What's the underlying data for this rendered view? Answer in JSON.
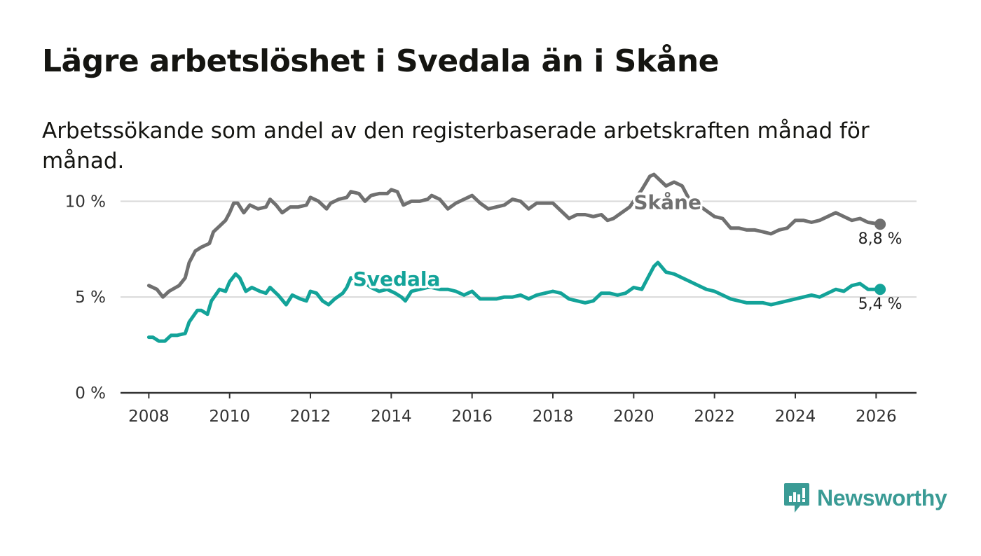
{
  "title": "Lägre arbetslöshet i Svedala än i Skåne",
  "subtitle": "Arbetssökande som andel av den registerbaserade arbetskraften månad för månad.",
  "brand": "Newsworthy",
  "colors": {
    "skane": "#707070",
    "svedala": "#13a399",
    "grid": "#d9d9d9",
    "axis": "#333333",
    "brand": "#3a9b95"
  },
  "chart_data": {
    "type": "line",
    "title": "Lägre arbetslöshet i Svedala än i Skåne",
    "xlabel": "",
    "ylabel": "",
    "xlim": [
      2007.3,
      2027.0
    ],
    "ylim": [
      0,
      11
    ],
    "x_ticks": [
      {
        "value": 2008,
        "label": "2008"
      },
      {
        "value": 2010,
        "label": "2010"
      },
      {
        "value": 2012,
        "label": "2012"
      },
      {
        "value": 2014,
        "label": "2014"
      },
      {
        "value": 2016,
        "label": "2016"
      },
      {
        "value": 2018,
        "label": "2018"
      },
      {
        "value": 2020,
        "label": "2020"
      },
      {
        "value": 2022,
        "label": "2022"
      },
      {
        "value": 2024,
        "label": "2024"
      },
      {
        "value": 2026,
        "label": "2026"
      }
    ],
    "y_ticks": [
      {
        "value": 0,
        "label": "0 %"
      },
      {
        "value": 5,
        "label": "5 %"
      },
      {
        "value": 10,
        "label": "10 %"
      }
    ],
    "series": [
      {
        "name": "Skåne",
        "color": "#707070",
        "last_label": "8,8 %",
        "x": [
          2008.0,
          2008.2,
          2008.35,
          2008.5,
          2008.75,
          2008.9,
          2009.0,
          2009.15,
          2009.3,
          2009.5,
          2009.6,
          2009.75,
          2009.9,
          2010.0,
          2010.1,
          2010.2,
          2010.35,
          2010.5,
          2010.7,
          2010.9,
          2011.0,
          2011.15,
          2011.3,
          2011.5,
          2011.7,
          2011.9,
          2012.0,
          2012.2,
          2012.4,
          2012.5,
          2012.7,
          2012.9,
          2013.0,
          2013.2,
          2013.35,
          2013.5,
          2013.7,
          2013.9,
          2014.0,
          2014.15,
          2014.3,
          2014.5,
          2014.7,
          2014.9,
          2015.0,
          2015.2,
          2015.4,
          2015.6,
          2015.8,
          2016.0,
          2016.2,
          2016.4,
          2016.6,
          2016.8,
          2017.0,
          2017.2,
          2017.4,
          2017.6,
          2017.8,
          2018.0,
          2018.2,
          2018.4,
          2018.6,
          2018.8,
          2019.0,
          2019.2,
          2019.35,
          2019.5,
          2019.7,
          2019.9,
          2020.0,
          2020.2,
          2020.4,
          2020.5,
          2020.6,
          2020.8,
          2021.0,
          2021.2,
          2021.4,
          2021.6,
          2021.8,
          2022.0,
          2022.2,
          2022.4,
          2022.6,
          2022.8,
          2023.0,
          2023.2,
          2023.4,
          2023.6,
          2023.8,
          2024.0,
          2024.2,
          2024.4,
          2024.6,
          2024.8,
          2025.0,
          2025.2,
          2025.4,
          2025.6,
          2025.8,
          2026.1
        ],
        "values": [
          5.6,
          5.4,
          5.0,
          5.3,
          5.6,
          6.0,
          6.8,
          7.4,
          7.6,
          7.8,
          8.4,
          8.7,
          9.0,
          9.4,
          9.9,
          9.9,
          9.4,
          9.8,
          9.6,
          9.7,
          10.1,
          9.8,
          9.4,
          9.7,
          9.7,
          9.8,
          10.2,
          10.0,
          9.6,
          9.9,
          10.1,
          10.2,
          10.5,
          10.4,
          10.0,
          10.3,
          10.4,
          10.4,
          10.6,
          10.5,
          9.8,
          10.0,
          10.0,
          10.1,
          10.3,
          10.1,
          9.6,
          9.9,
          10.1,
          10.3,
          9.9,
          9.6,
          9.7,
          9.8,
          10.1,
          10.0,
          9.6,
          9.9,
          9.9,
          9.9,
          9.5,
          9.1,
          9.3,
          9.3,
          9.2,
          9.3,
          9.0,
          9.1,
          9.4,
          9.7,
          10.0,
          10.6,
          11.3,
          11.4,
          11.2,
          10.8,
          11.0,
          10.8,
          10.0,
          9.8,
          9.5,
          9.2,
          9.1,
          8.6,
          8.6,
          8.5,
          8.5,
          8.4,
          8.3,
          8.5,
          8.6,
          9.0,
          9.0,
          8.9,
          9.0,
          9.2,
          9.4,
          9.2,
          9.0,
          9.1,
          8.9,
          8.8
        ]
      },
      {
        "name": "Svedala",
        "color": "#13a399",
        "last_label": "5,4 %",
        "x": [
          2008.0,
          2008.1,
          2008.25,
          2008.4,
          2008.55,
          2008.7,
          2008.9,
          2009.0,
          2009.2,
          2009.3,
          2009.45,
          2009.55,
          2009.75,
          2009.9,
          2010.0,
          2010.15,
          2010.25,
          2010.4,
          2010.55,
          2010.75,
          2010.9,
          2011.0,
          2011.2,
          2011.4,
          2011.55,
          2011.75,
          2011.9,
          2012.0,
          2012.15,
          2012.3,
          2012.45,
          2012.6,
          2012.8,
          2012.9,
          2013.0,
          2013.3,
          2013.5,
          2013.7,
          2013.9,
          2014.1,
          2014.25,
          2014.35,
          2014.5,
          2014.7,
          2014.9,
          2015.0,
          2015.2,
          2015.4,
          2015.6,
          2015.8,
          2016.0,
          2016.2,
          2016.4,
          2016.6,
          2016.8,
          2017.0,
          2017.2,
          2017.4,
          2017.6,
          2017.8,
          2018.0,
          2018.2,
          2018.4,
          2018.6,
          2018.8,
          2019.0,
          2019.2,
          2019.4,
          2019.6,
          2019.8,
          2020.0,
          2020.2,
          2020.35,
          2020.5,
          2020.6,
          2020.8,
          2021.0,
          2021.2,
          2021.4,
          2021.6,
          2021.8,
          2022.0,
          2022.2,
          2022.4,
          2022.6,
          2022.8,
          2023.0,
          2023.2,
          2023.4,
          2023.6,
          2023.8,
          2024.0,
          2024.2,
          2024.4,
          2024.6,
          2024.8,
          2025.0,
          2025.2,
          2025.4,
          2025.6,
          2025.8,
          2026.1
        ],
        "values": [
          2.9,
          2.9,
          2.7,
          2.7,
          3.0,
          3.0,
          3.1,
          3.7,
          4.3,
          4.3,
          4.1,
          4.8,
          5.4,
          5.3,
          5.8,
          6.2,
          6.0,
          5.3,
          5.5,
          5.3,
          5.2,
          5.5,
          5.1,
          4.6,
          5.1,
          4.9,
          4.8,
          5.3,
          5.2,
          4.8,
          4.6,
          4.9,
          5.2,
          5.5,
          6.0,
          5.8,
          5.5,
          5.3,
          5.4,
          5.2,
          5.0,
          4.8,
          5.3,
          5.4,
          5.5,
          5.5,
          5.4,
          5.4,
          5.3,
          5.1,
          5.3,
          4.9,
          4.9,
          4.9,
          5.0,
          5.0,
          5.1,
          4.9,
          5.1,
          5.2,
          5.3,
          5.2,
          4.9,
          4.8,
          4.7,
          4.8,
          5.2,
          5.2,
          5.1,
          5.2,
          5.5,
          5.4,
          6.0,
          6.6,
          6.8,
          6.3,
          6.2,
          6.0,
          5.8,
          5.6,
          5.4,
          5.3,
          5.1,
          4.9,
          4.8,
          4.7,
          4.7,
          4.7,
          4.6,
          4.7,
          4.8,
          4.9,
          5.0,
          5.1,
          5.0,
          5.2,
          5.4,
          5.3,
          5.6,
          5.7,
          5.4,
          5.4
        ]
      }
    ],
    "annotations": [
      {
        "text": "Skåne",
        "series": "Skåne",
        "x": 2020.0,
        "y": 9.95
      },
      {
        "text": "Svedala",
        "series": "Svedala",
        "x": 2013.05,
        "y": 5.95
      }
    ]
  }
}
